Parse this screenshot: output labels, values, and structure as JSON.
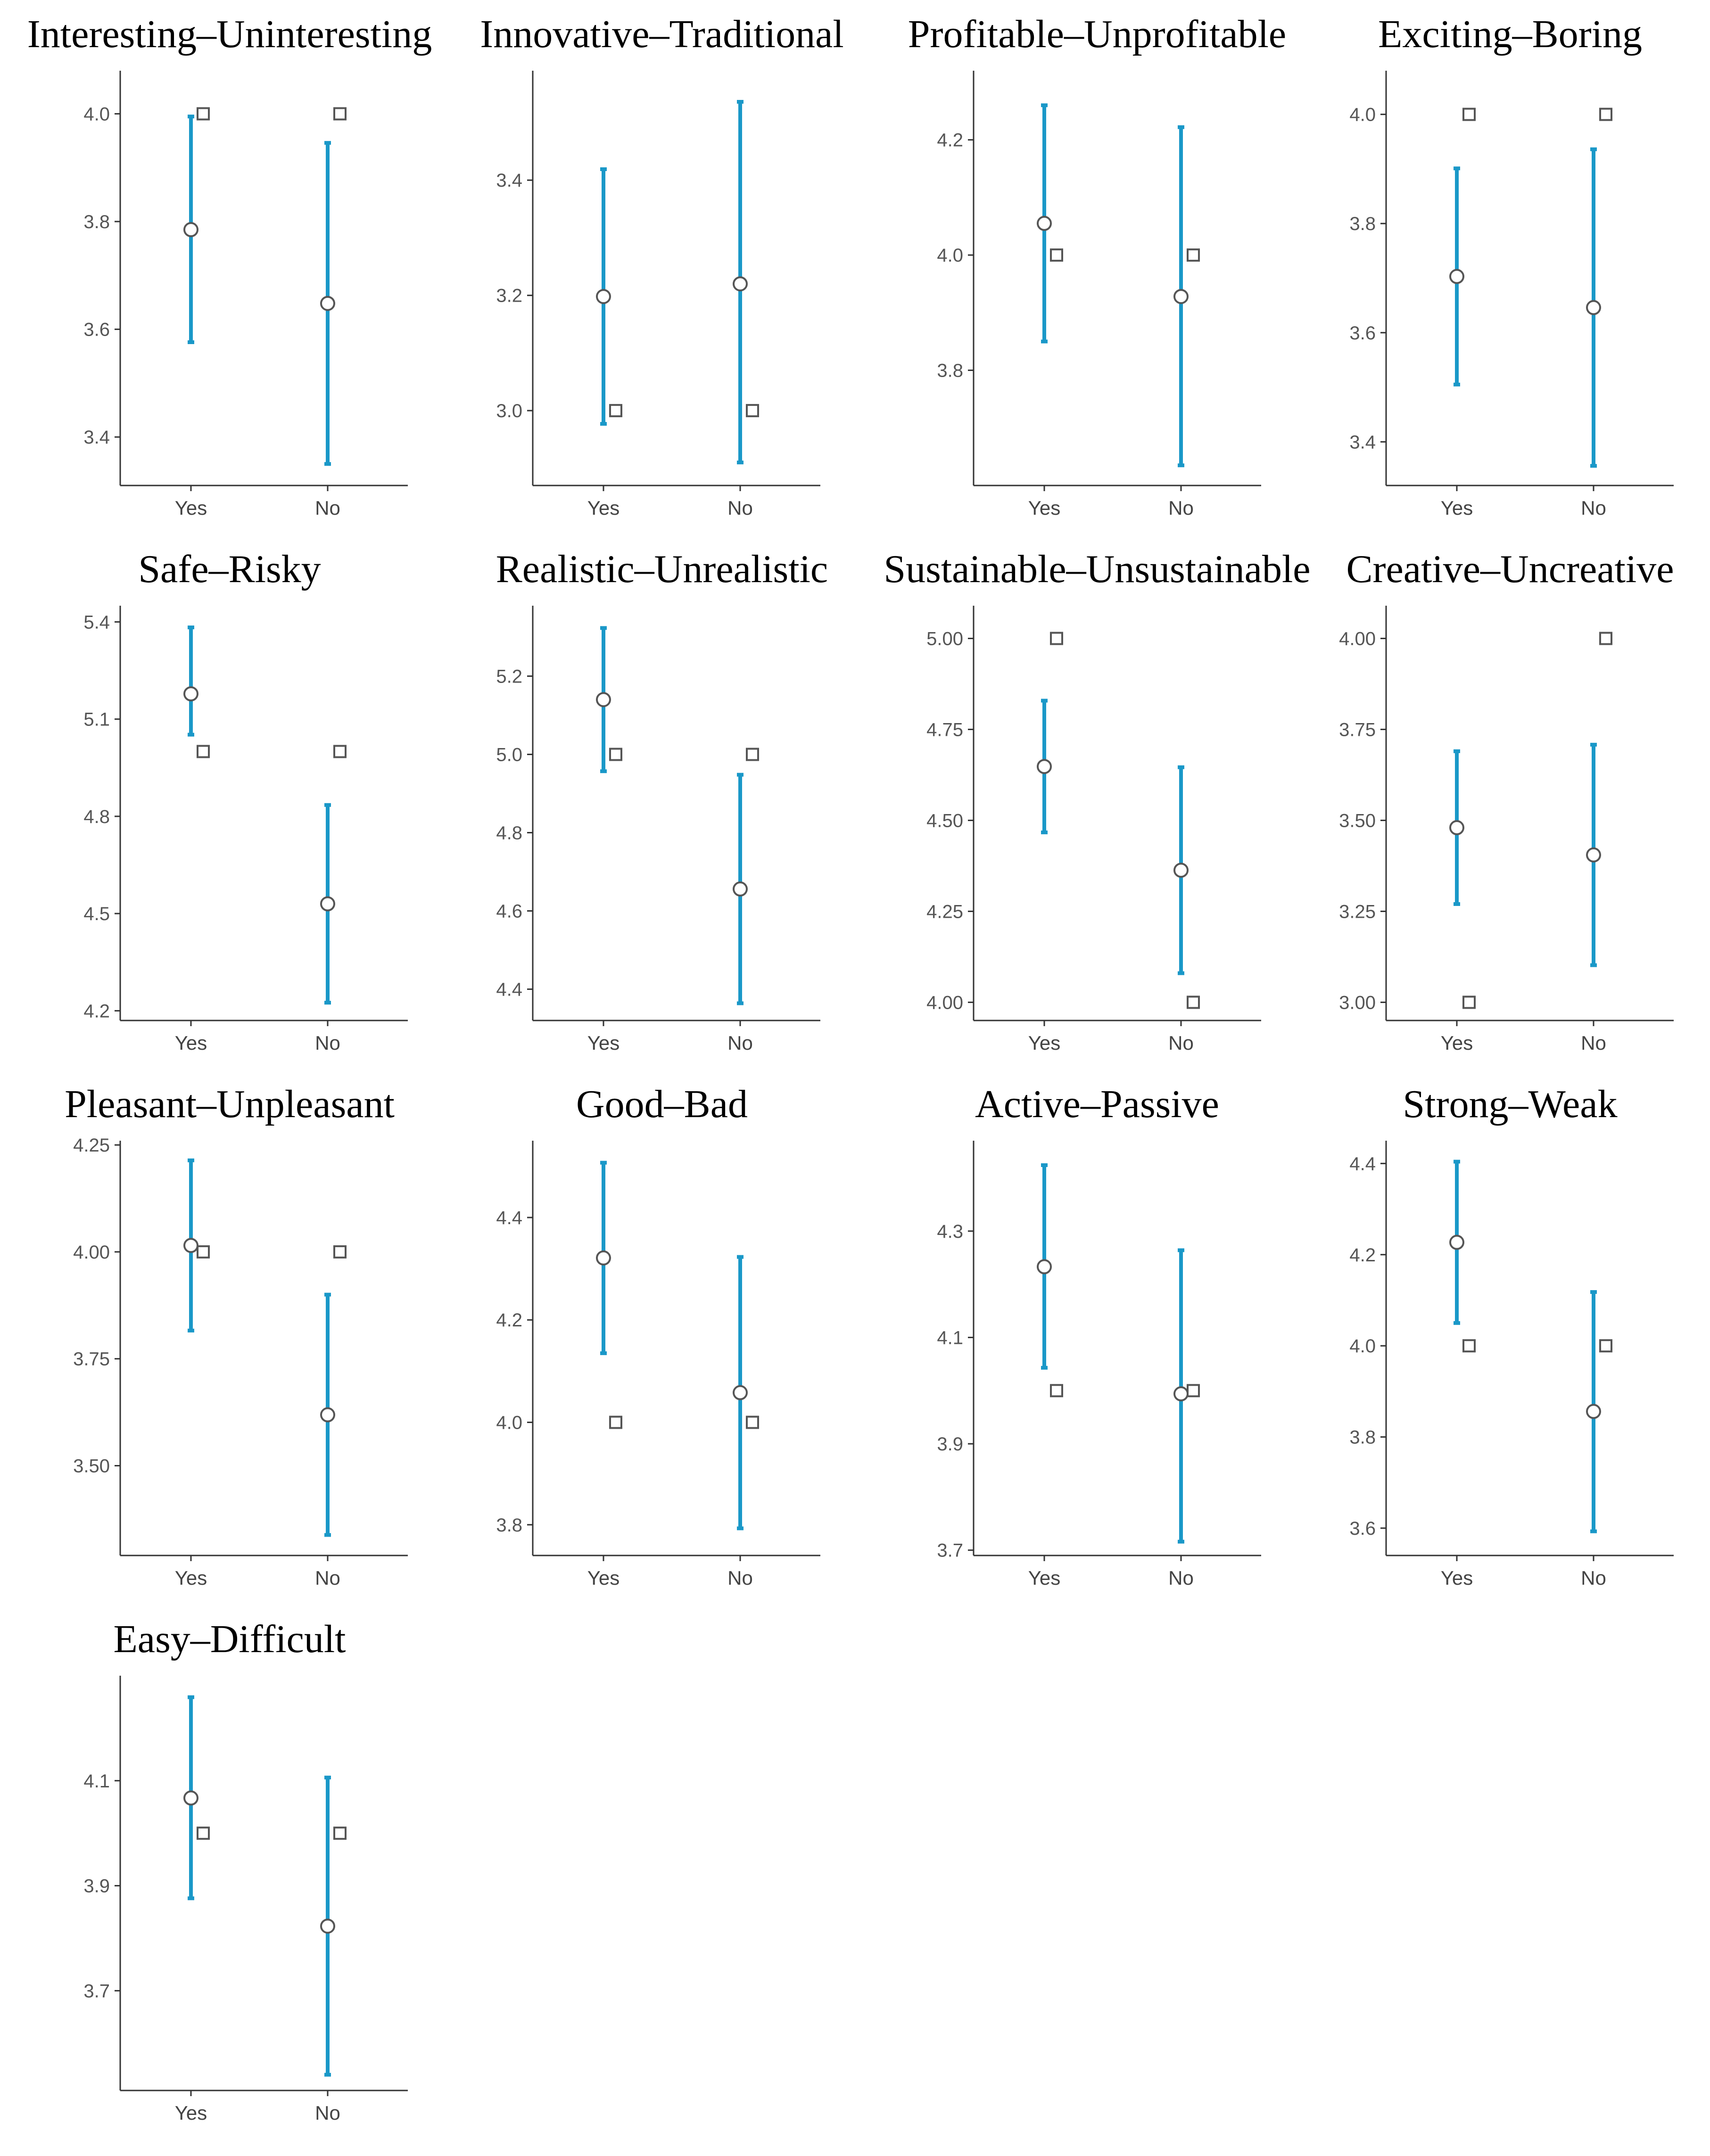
{
  "colors": {
    "ci": "#1a98c8",
    "marker_stroke": "#555555"
  },
  "chart_data": [
    {
      "type": "scatter",
      "title": "Interesting–Uninteresting",
      "categories": [
        "Yes",
        "No"
      ],
      "yticks": [
        "3.4",
        "3.6",
        "3.8",
        "4.0"
      ],
      "ylim": [
        3.31,
        4.08
      ],
      "series": [
        {
          "name": "mean",
          "values": [
            3.785,
            3.648
          ]
        },
        {
          "name": "ci_lower",
          "values": [
            3.576,
            3.35
          ]
        },
        {
          "name": "ci_upper",
          "values": [
            3.995,
            3.946
          ]
        },
        {
          "name": "median",
          "values": [
            4.0,
            4.0
          ]
        }
      ]
    },
    {
      "type": "scatter",
      "title": "Innovative–Traditional",
      "categories": [
        "Yes",
        "No"
      ],
      "yticks": [
        "3.0",
        "3.2",
        "3.4"
      ],
      "ylim": [
        2.87,
        3.59
      ],
      "series": [
        {
          "name": "mean",
          "values": [
            3.198,
            3.22
          ]
        },
        {
          "name": "ci_lower",
          "values": [
            2.977,
            2.91
          ]
        },
        {
          "name": "ci_upper",
          "values": [
            3.419,
            3.536
          ]
        },
        {
          "name": "median",
          "values": [
            3.0,
            3.0
          ]
        }
      ]
    },
    {
      "type": "scatter",
      "title": "Profitable–Unprofitable",
      "categories": [
        "Yes",
        "No"
      ],
      "yticks": [
        "3.8",
        "4.0",
        "4.2"
      ],
      "ylim": [
        3.6,
        4.32
      ],
      "series": [
        {
          "name": "mean",
          "values": [
            4.055,
            3.928
          ]
        },
        {
          "name": "ci_lower",
          "values": [
            3.85,
            3.635
          ]
        },
        {
          "name": "ci_upper",
          "values": [
            4.26,
            4.222
          ]
        },
        {
          "name": "median",
          "values": [
            4.0,
            4.0
          ]
        }
      ]
    },
    {
      "type": "scatter",
      "title": "Exciting–Boring",
      "categories": [
        "Yes",
        "No"
      ],
      "yticks": [
        "3.4",
        "3.6",
        "3.8",
        "4.0"
      ],
      "ylim": [
        3.32,
        4.08
      ],
      "series": [
        {
          "name": "mean",
          "values": [
            3.703,
            3.646
          ]
        },
        {
          "name": "ci_lower",
          "values": [
            3.505,
            3.356
          ]
        },
        {
          "name": "ci_upper",
          "values": [
            3.901,
            3.936
          ]
        },
        {
          "name": "median",
          "values": [
            4.0,
            4.0
          ]
        }
      ]
    },
    {
      "type": "scatter",
      "title": "Safe–Risky",
      "categories": [
        "Yes",
        "No"
      ],
      "yticks": [
        "4.2",
        "4.5",
        "4.8",
        "5.1",
        "5.4"
      ],
      "ylim": [
        4.17,
        5.45
      ],
      "series": [
        {
          "name": "mean",
          "values": [
            5.178,
            4.53
          ]
        },
        {
          "name": "ci_lower",
          "values": [
            5.052,
            4.225
          ]
        },
        {
          "name": "ci_upper",
          "values": [
            5.383,
            4.835
          ]
        },
        {
          "name": "median",
          "values": [
            5.0,
            5.0
          ]
        }
      ]
    },
    {
      "type": "scatter",
      "title": "Realistic–Unrealistic",
      "categories": [
        "Yes",
        "No"
      ],
      "yticks": [
        "4.4",
        "4.6",
        "4.8",
        "5.0",
        "5.2"
      ],
      "ylim": [
        4.32,
        5.38
      ],
      "series": [
        {
          "name": "mean",
          "values": [
            5.14,
            4.656
          ]
        },
        {
          "name": "ci_lower",
          "values": [
            4.957,
            4.364
          ]
        },
        {
          "name": "ci_upper",
          "values": [
            5.323,
            4.948
          ]
        },
        {
          "name": "median",
          "values": [
            5.0,
            5.0
          ]
        }
      ]
    },
    {
      "type": "scatter",
      "title": "Sustainable–Unsustainable",
      "categories": [
        "Yes",
        "No"
      ],
      "yticks": [
        "4.00",
        "4.25",
        "4.50",
        "4.75",
        "5.00"
      ],
      "ylim": [
        3.95,
        5.09
      ],
      "series": [
        {
          "name": "mean",
          "values": [
            4.648,
            4.363
          ]
        },
        {
          "name": "ci_lower",
          "values": [
            4.467,
            4.08
          ]
        },
        {
          "name": "ci_upper",
          "values": [
            4.829,
            4.646
          ]
        },
        {
          "name": "median",
          "values": [
            5.0,
            4.0
          ]
        }
      ]
    },
    {
      "type": "scatter",
      "title": "Creative–Uncreative",
      "categories": [
        "Yes",
        "No"
      ],
      "yticks": [
        "3.00",
        "3.25",
        "3.50",
        "3.75",
        "4.00"
      ],
      "ylim": [
        2.95,
        4.09
      ],
      "series": [
        {
          "name": "mean",
          "values": [
            3.48,
            3.405
          ]
        },
        {
          "name": "ci_lower",
          "values": [
            3.27,
            3.102
          ]
        },
        {
          "name": "ci_upper",
          "values": [
            3.69,
            3.708
          ]
        },
        {
          "name": "median",
          "values": [
            3.0,
            4.0
          ]
        }
      ]
    },
    {
      "type": "scatter",
      "title": "Pleasant–Unpleasant",
      "categories": [
        "Yes",
        "No"
      ],
      "yticks": [
        "3.50",
        "3.75",
        "4.00",
        "4.25"
      ],
      "ylim": [
        3.29,
        4.26
      ],
      "series": [
        {
          "name": "mean",
          "values": [
            4.015,
            3.619
          ]
        },
        {
          "name": "ci_lower",
          "values": [
            3.816,
            3.338
          ]
        },
        {
          "name": "ci_upper",
          "values": [
            4.214,
            3.9
          ]
        },
        {
          "name": "median",
          "values": [
            4.0,
            4.0
          ]
        }
      ]
    },
    {
      "type": "scatter",
      "title": "Good–Bad",
      "categories": [
        "Yes",
        "No"
      ],
      "yticks": [
        "3.8",
        "4.0",
        "4.2",
        "4.4"
      ],
      "ylim": [
        3.74,
        4.55
      ],
      "series": [
        {
          "name": "mean",
          "values": [
            4.321,
            4.058
          ]
        },
        {
          "name": "ci_lower",
          "values": [
            4.135,
            3.793
          ]
        },
        {
          "name": "ci_upper",
          "values": [
            4.507,
            4.323
          ]
        },
        {
          "name": "median",
          "values": [
            4.0,
            4.0
          ]
        }
      ]
    },
    {
      "type": "scatter",
      "title": "Active–Passive",
      "categories": [
        "Yes",
        "No"
      ],
      "yticks": [
        "3.7",
        "3.9",
        "4.1",
        "4.3"
      ],
      "ylim": [
        3.69,
        4.47
      ],
      "series": [
        {
          "name": "mean",
          "values": [
            4.233,
            3.994
          ]
        },
        {
          "name": "ci_lower",
          "values": [
            4.043,
            3.716
          ]
        },
        {
          "name": "ci_upper",
          "values": [
            4.424,
            4.264
          ]
        },
        {
          "name": "median",
          "values": [
            4.0,
            4.0
          ]
        }
      ]
    },
    {
      "type": "scatter",
      "title": "Strong–Weak",
      "categories": [
        "Yes",
        "No"
      ],
      "yticks": [
        "3.6",
        "3.8",
        "4.0",
        "4.2",
        "4.4"
      ],
      "ylim": [
        3.54,
        4.45
      ],
      "series": [
        {
          "name": "mean",
          "values": [
            4.227,
            3.856
          ]
        },
        {
          "name": "ci_lower",
          "values": [
            4.05,
            3.593
          ]
        },
        {
          "name": "ci_upper",
          "values": [
            4.404,
            4.118
          ]
        },
        {
          "name": "median",
          "values": [
            4.0,
            4.0
          ]
        }
      ]
    },
    {
      "type": "scatter",
      "title": "Easy–Difficult",
      "categories": [
        "Yes",
        "No"
      ],
      "yticks": [
        "3.7",
        "3.9",
        "4.1"
      ],
      "ylim": [
        3.51,
        4.3
      ],
      "series": [
        {
          "name": "mean",
          "values": [
            4.067,
            3.823
          ]
        },
        {
          "name": "ci_lower",
          "values": [
            3.876,
            3.54
          ]
        },
        {
          "name": "ci_upper",
          "values": [
            4.259,
            4.106
          ]
        },
        {
          "name": "median",
          "values": [
            4.0,
            4.0
          ]
        }
      ]
    }
  ]
}
